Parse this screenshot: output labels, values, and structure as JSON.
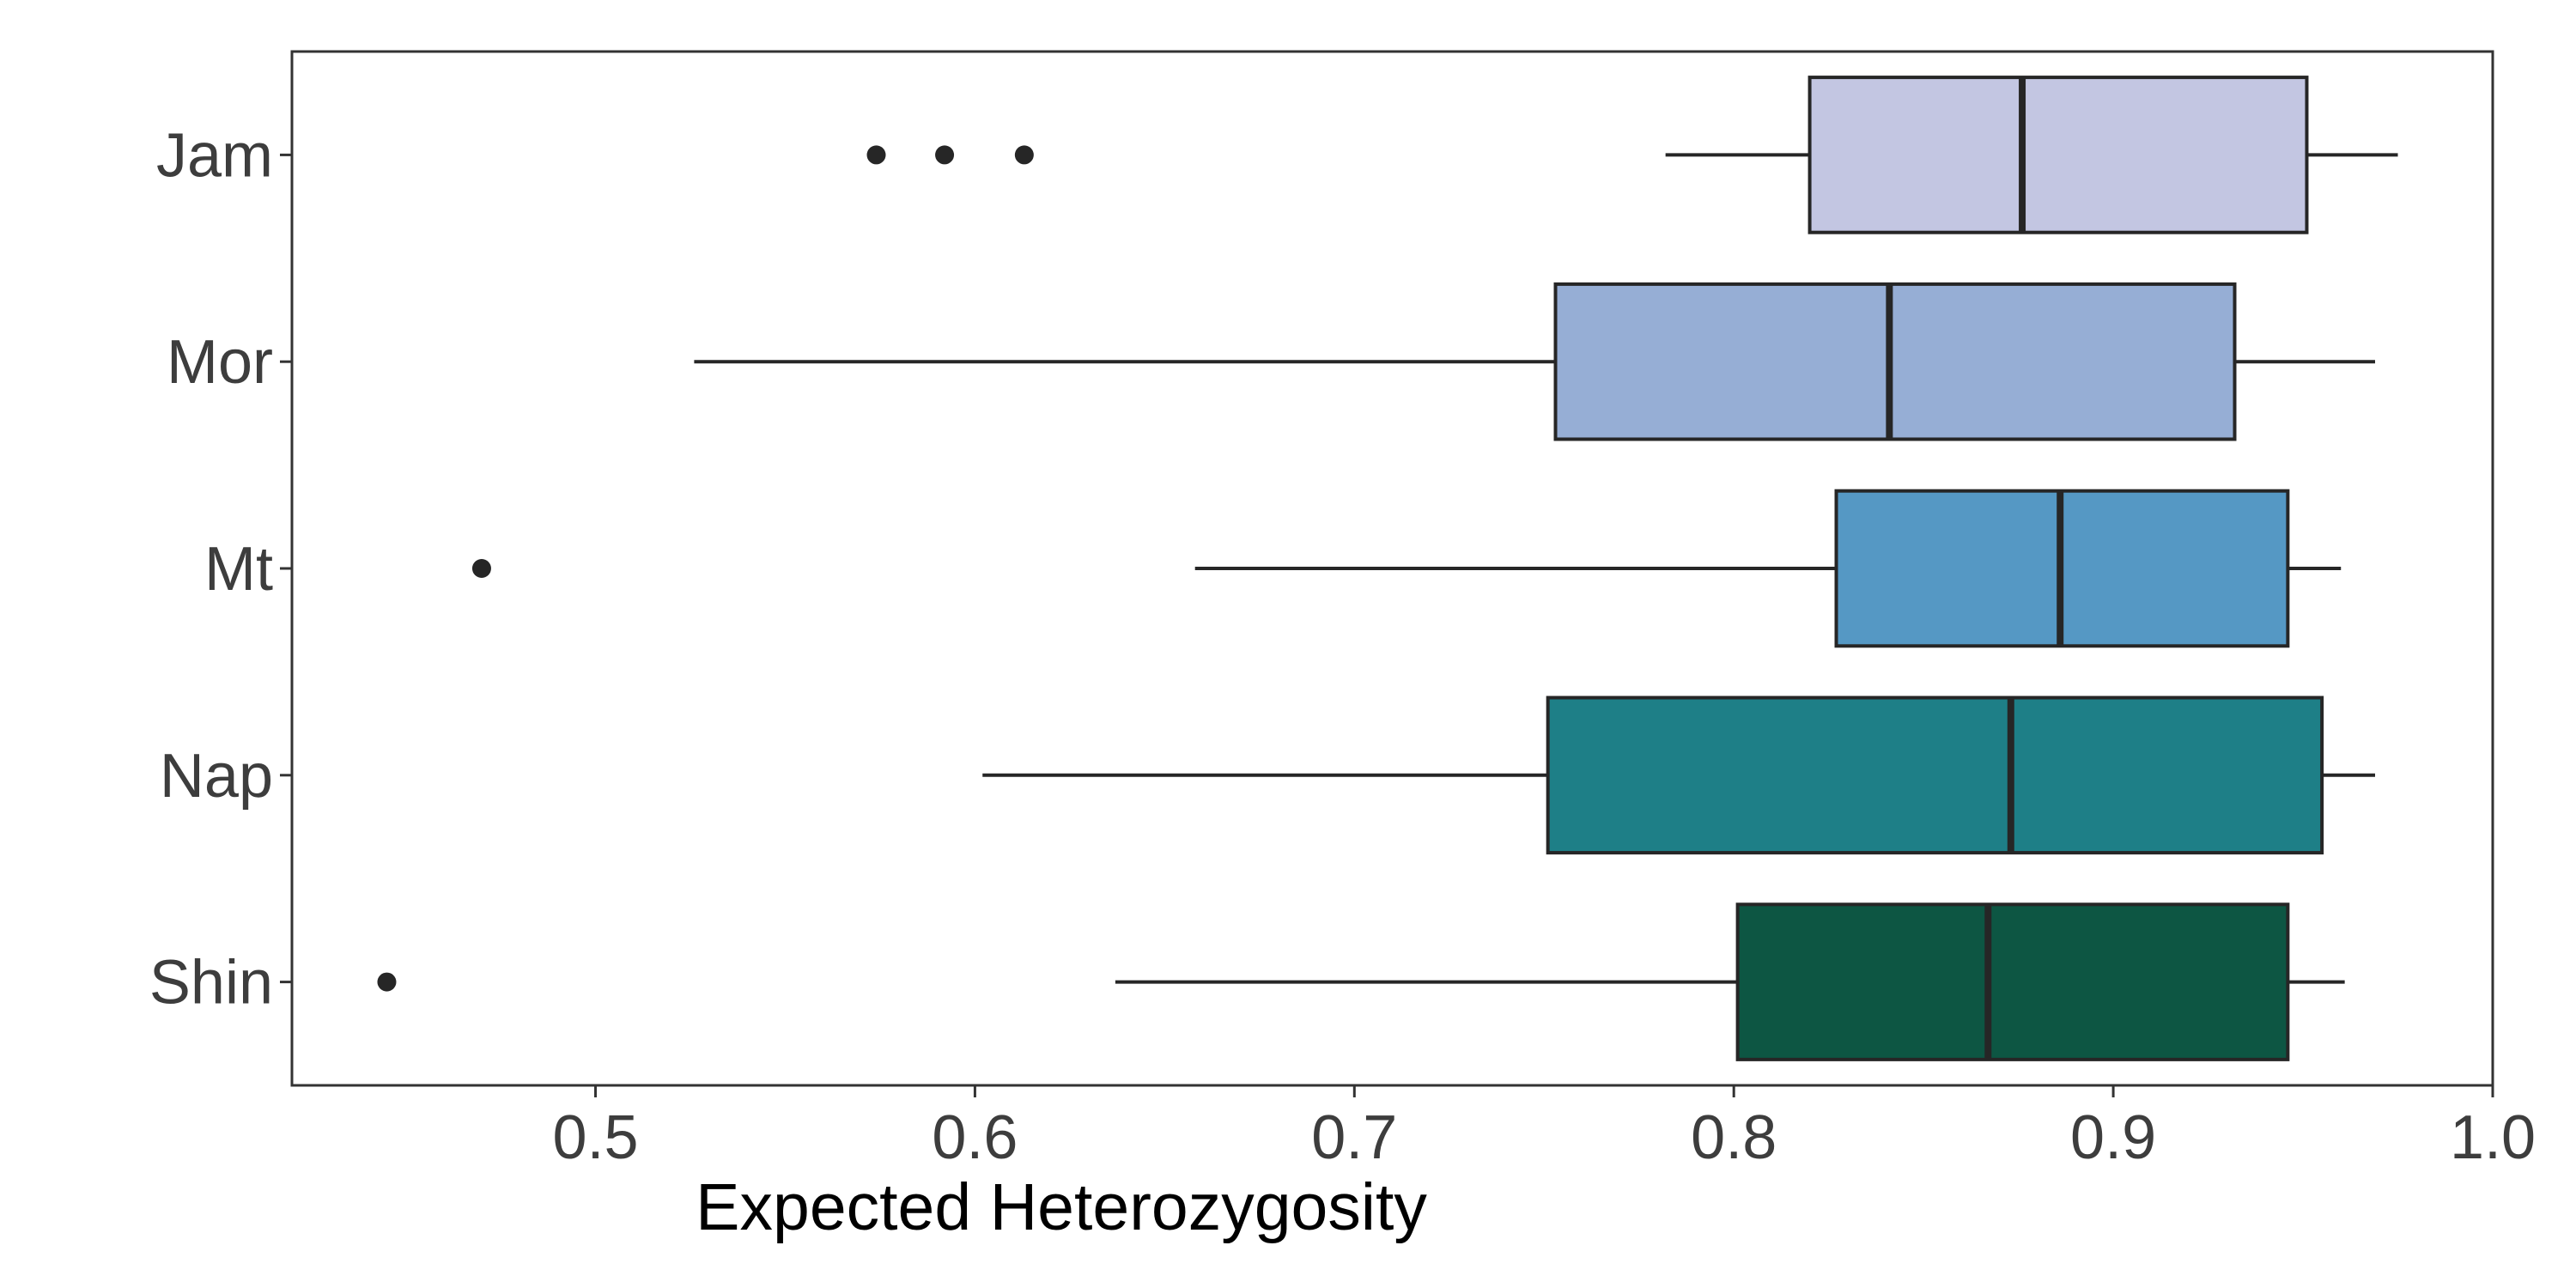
{
  "chart_data": {
    "type": "boxplot",
    "orientation": "horizontal",
    "title": "",
    "xlabel": "Expected Heterozygosity",
    "ylabel": "",
    "xlim": [
      0.42,
      1.0
    ],
    "x_ticks": [
      0.5,
      0.6,
      0.7,
      0.8,
      0.9,
      1.0
    ],
    "x_tick_labels": [
      "0.5",
      "0.6",
      "0.7",
      "0.8",
      "0.9",
      "1.0"
    ],
    "grid": false,
    "legend": "none",
    "categories": [
      "Jam",
      "Mor",
      "Mt",
      "Nap",
      "Shin"
    ],
    "boxes": [
      {
        "category": "Jam",
        "whisker_low": 0.782,
        "q1": 0.82,
        "median": 0.876,
        "q3": 0.951,
        "whisker_high": 0.975,
        "outliers": [
          0.574,
          0.592,
          0.613
        ],
        "color": "#c3c6e2"
      },
      {
        "category": "Mor",
        "whisker_low": 0.526,
        "q1": 0.753,
        "median": 0.841,
        "q3": 0.932,
        "whisker_high": 0.969,
        "outliers": [],
        "color": "#96aed5"
      },
      {
        "category": "Mt",
        "whisker_low": 0.658,
        "q1": 0.827,
        "median": 0.886,
        "q3": 0.946,
        "whisker_high": 0.96,
        "outliers": [
          0.47
        ],
        "color": "#5598c4"
      },
      {
        "category": "Nap",
        "whisker_low": 0.602,
        "q1": 0.751,
        "median": 0.873,
        "q3": 0.955,
        "whisker_high": 0.969,
        "outliers": [],
        "color": "#1e7f87"
      },
      {
        "category": "Shin",
        "whisker_low": 0.637,
        "q1": 0.801,
        "median": 0.867,
        "q3": 0.946,
        "whisker_high": 0.961,
        "outliers": [
          0.445
        ],
        "color": "#0d5643"
      }
    ]
  }
}
